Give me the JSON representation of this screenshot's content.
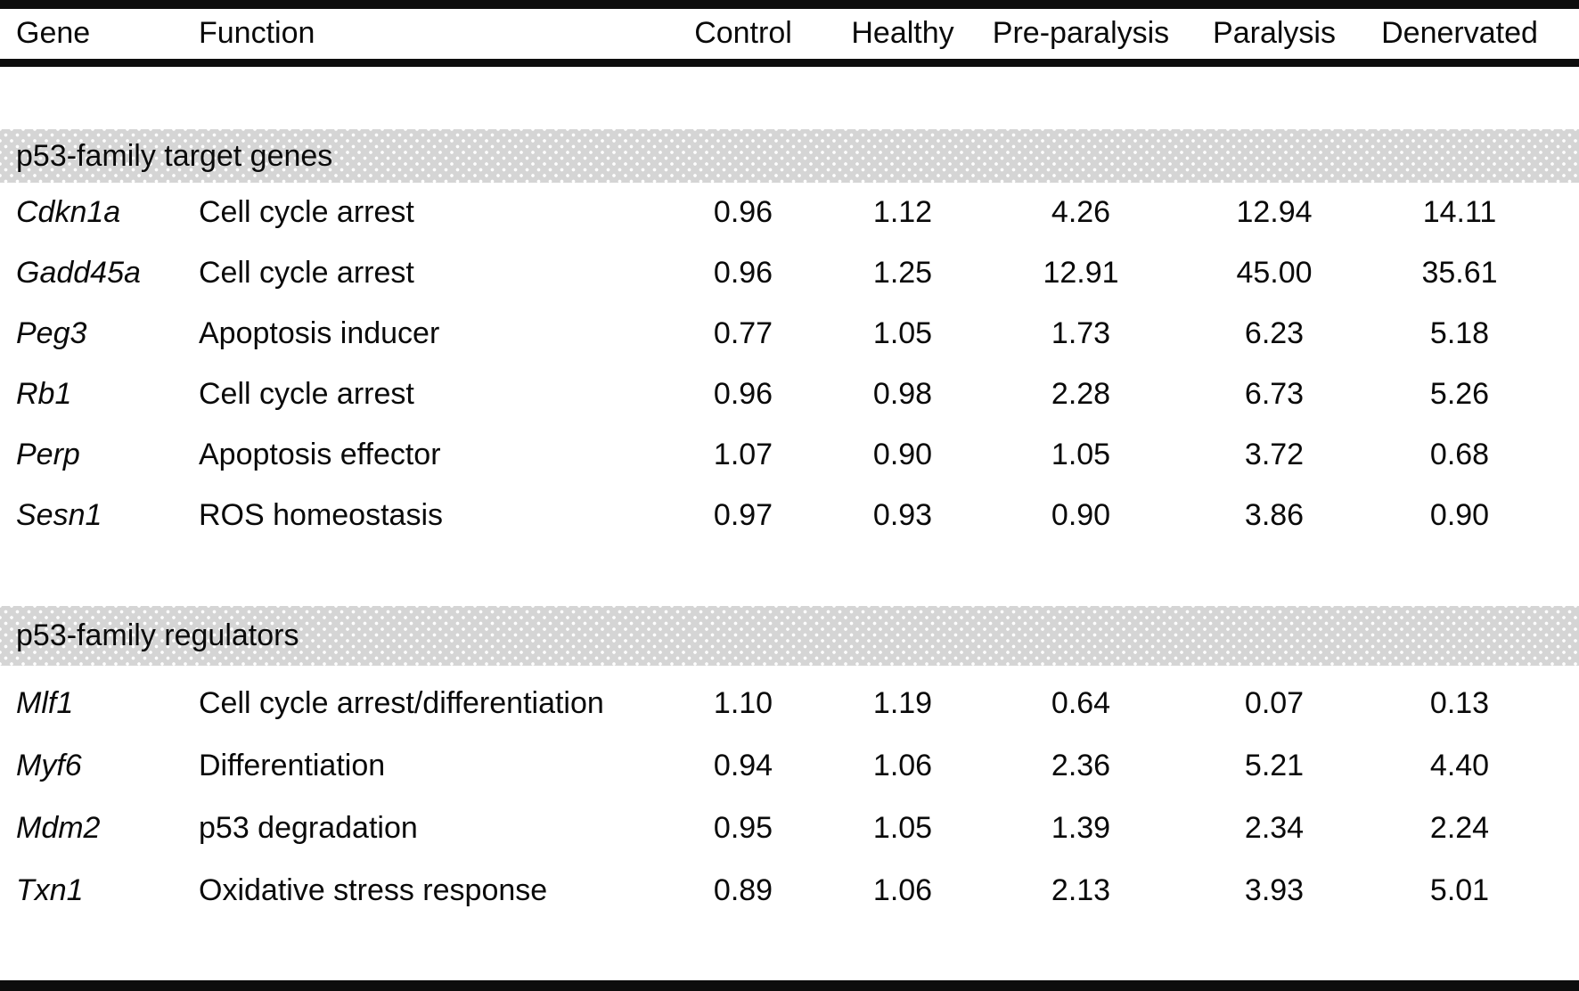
{
  "table": {
    "columns": [
      "Gene",
      "Function",
      "Control",
      "Healthy",
      "Pre-paralysis",
      "Paralysis",
      "Denervated"
    ],
    "sections": [
      {
        "title": "p53-family target genes",
        "rows": [
          {
            "gene": "Cdkn1a",
            "function": "Cell cycle arrest",
            "values": [
              "0.96",
              "1.12",
              "4.26",
              "12.94",
              "14.11"
            ]
          },
          {
            "gene": "Gadd45a",
            "function": "Cell cycle arrest",
            "values": [
              "0.96",
              "1.25",
              "12.91",
              "45.00",
              "35.61"
            ]
          },
          {
            "gene": "Peg3",
            "function": "Apoptosis inducer",
            "values": [
              "0.77",
              "1.05",
              "1.73",
              "6.23",
              "5.18"
            ]
          },
          {
            "gene": "Rb1",
            "function": "Cell cycle arrest",
            "values": [
              "0.96",
              "0.98",
              "2.28",
              "6.73",
              "5.26"
            ]
          },
          {
            "gene": "Perp",
            "function": "Apoptosis effector",
            "values": [
              "1.07",
              "0.90",
              "1.05",
              "3.72",
              "0.68"
            ]
          },
          {
            "gene": "Sesn1",
            "function": "ROS homeostasis",
            "values": [
              "0.97",
              "0.93",
              "0.90",
              "3.86",
              "0.90"
            ]
          }
        ]
      },
      {
        "title": "p53-family regulators",
        "rows": [
          {
            "gene": "Mlf1",
            "function": "Cell cycle arrest/differentiation",
            "values": [
              "1.10",
              "1.19",
              "0.64",
              "0.07",
              "0.13"
            ]
          },
          {
            "gene": "Myf6",
            "function": "Differentiation",
            "values": [
              "0.94",
              "1.06",
              "2.36",
              "5.21",
              "4.40"
            ]
          },
          {
            "gene": "Mdm2",
            "function": "p53 degradation",
            "values": [
              "0.95",
              "1.05",
              "1.39",
              "2.34",
              "2.24"
            ]
          },
          {
            "gene": "Txn1",
            "function": "Oxidative stress response",
            "values": [
              "0.89",
              "1.06",
              "2.13",
              "3.93",
              "5.01"
            ]
          }
        ]
      }
    ]
  },
  "colors": {
    "rule": "#0d0d0d",
    "text": "#0a0a0a",
    "band-bg": "#d5d5d5",
    "band-dot": "#ffffff"
  }
}
